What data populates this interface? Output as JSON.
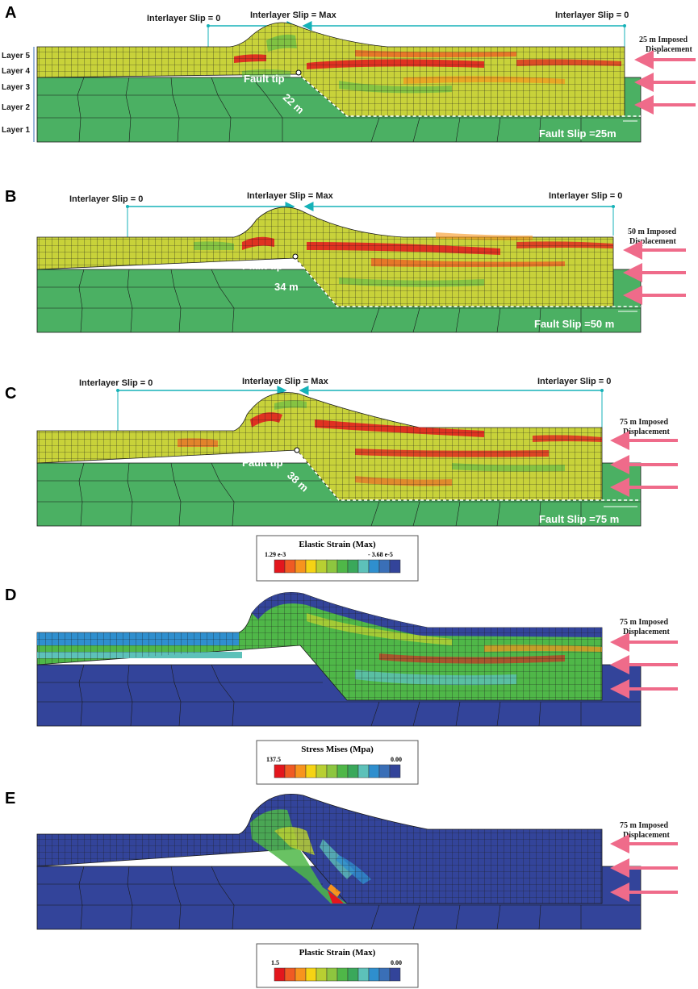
{
  "palette": {
    "yellow": "#c8d23a",
    "green": "#4bb063",
    "teal": "#16b2b8",
    "arrow": "#ef6b8a",
    "navy": "#33449a",
    "scale": [
      "#e3161d",
      "#f05a23",
      "#f7941d",
      "#f5d314",
      "#b8cf32",
      "#8dc63f",
      "#4fb748",
      "#3aa85b",
      "#5dc1b9",
      "#2f8fce",
      "#3a6fb7",
      "#33449a"
    ]
  },
  "panels": [
    {
      "label": "A",
      "slip_left": "Interlayer Slip = 0",
      "slip_mid": "Interlayer Slip = Max",
      "slip_right": "Interlayer Slip = 0",
      "disp_line1": "25 m Imposed",
      "disp_line2": "Displacement",
      "fault_tip": "Fault tip",
      "distance": "22 m",
      "fault_slip": "Fault Slip =25m",
      "layers": [
        "Layer 5",
        "Layer 4",
        "Layer 3",
        "Layer 2",
        "Layer 1"
      ]
    },
    {
      "label": "B",
      "slip_left": "Interlayer Slip = 0",
      "slip_mid": "Interlayer Slip = Max",
      "slip_right": "Interlayer Slip = 0",
      "disp_line1": "50 m Imposed",
      "disp_line2": "Displacement",
      "fault_tip": "Fault tip",
      "distance": "34 m",
      "fault_slip": "Fault Slip =50 m"
    },
    {
      "label": "C",
      "slip_left": "Interlayer Slip = 0",
      "slip_mid": "Interlayer Slip = Max",
      "slip_right": "Interlayer Slip = 0",
      "disp_line1": "75 m Imposed",
      "disp_line2": "Displacement",
      "fault_tip": "Fault tip",
      "distance": "38 m",
      "fault_slip": "Fault Slip =75 m"
    },
    {
      "label": "D",
      "disp_line1": "75 m Imposed",
      "disp_line2": "Displacement"
    },
    {
      "label": "E",
      "disp_line1": "75 m Imposed",
      "disp_line2": "Displacement"
    }
  ],
  "legends": [
    {
      "title": "Elastic Strain (Max)",
      "max": "1.29 e-3",
      "min": "- 3.68 e-5"
    },
    {
      "title": "Stress Mises (Mpa)",
      "max": "137.5",
      "min": "0.00"
    },
    {
      "title": "Plastic Strain (Max)",
      "max": "1.5",
      "min": "0.00"
    }
  ]
}
